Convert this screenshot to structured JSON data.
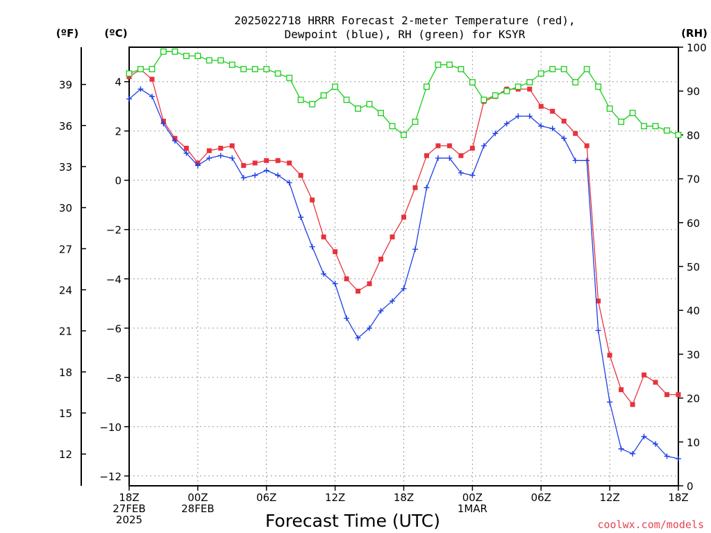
{
  "title_line1": "2025022718 HRRR Forecast 2-meter Temperature (red),",
  "title_line2": "Dewpoint (blue), RH (green) for KSYR",
  "units": {
    "fahrenheit": "(ºF)",
    "celsius": "(ºC)",
    "rh": "(RH)"
  },
  "xlabel": "Forecast Time (UTC)",
  "credit": "coolwx.com/models",
  "colors": {
    "temperature": "#e8323c",
    "dewpoint": "#1e3ee6",
    "rh": "#18cc18"
  },
  "chart_data": {
    "type": "line",
    "title": "2025022718 HRRR Forecast 2-meter Temperature (red), Dewpoint (blue), RH (green) for KSYR",
    "xlabel": "Forecast Time (UTC)",
    "x_hours": [
      0,
      1,
      2,
      3,
      4,
      5,
      6,
      7,
      8,
      9,
      10,
      11,
      12,
      13,
      14,
      15,
      16,
      17,
      18,
      19,
      20,
      21,
      22,
      23,
      24,
      25,
      26,
      27,
      28,
      29,
      30,
      31,
      32,
      33,
      34,
      35,
      36,
      37,
      38,
      39,
      40,
      41,
      42,
      43,
      44,
      45,
      46,
      47,
      48
    ],
    "x_ticks": [
      {
        "hour": 0,
        "lines": [
          "18Z",
          "27FEB",
          "2025"
        ]
      },
      {
        "hour": 6,
        "lines": [
          "00Z",
          "28FEB"
        ]
      },
      {
        "hour": 12,
        "lines": [
          "06Z"
        ]
      },
      {
        "hour": 18,
        "lines": [
          "12Z"
        ]
      },
      {
        "hour": 24,
        "lines": [
          "18Z"
        ]
      },
      {
        "hour": 30,
        "lines": [
          "00Z",
          "1MAR"
        ]
      },
      {
        "hour": 36,
        "lines": [
          "06Z"
        ]
      },
      {
        "hour": 42,
        "lines": [
          "12Z"
        ]
      },
      {
        "hour": 48,
        "lines": [
          "18Z"
        ]
      }
    ],
    "xlim": [
      0,
      48
    ],
    "y_celsius": {
      "lim": [
        -12.4,
        5.4
      ],
      "ticks": [
        4,
        2,
        0,
        -2,
        -4,
        -6,
        -8,
        -10,
        -12
      ]
    },
    "y_fahrenheit": {
      "ticks": [
        39,
        36,
        33,
        30,
        27,
        24,
        21,
        18,
        15,
        12
      ]
    },
    "y_rh": {
      "lim": [
        0,
        100
      ],
      "ticks": [
        100,
        90,
        80,
        70,
        60,
        50,
        40,
        30,
        20,
        10,
        0
      ]
    },
    "grid": true,
    "series": [
      {
        "name": "Temperature",
        "axis": "celsius",
        "marker": "filled-square",
        "values": [
          4.2,
          4.5,
          4.1,
          2.4,
          1.7,
          1.3,
          0.7,
          1.2,
          1.3,
          1.4,
          0.6,
          0.7,
          0.8,
          0.8,
          0.7,
          0.2,
          -0.8,
          -2.3,
          -2.9,
          -4.0,
          -4.5,
          -4.2,
          -3.2,
          -2.3,
          -1.5,
          -0.3,
          1.0,
          1.4,
          1.4,
          1.0,
          1.3,
          3.2,
          3.4,
          3.7,
          3.7,
          3.7,
          3.0,
          2.8,
          2.4,
          1.9,
          1.4,
          -4.9,
          -7.1,
          -8.5,
          -9.1,
          -7.9,
          -8.2,
          -8.7,
          -8.7
        ]
      },
      {
        "name": "Dewpoint",
        "axis": "celsius",
        "marker": "plus",
        "values": [
          3.3,
          3.7,
          3.4,
          2.3,
          1.6,
          1.1,
          0.6,
          0.9,
          1.0,
          0.9,
          0.1,
          0.2,
          0.4,
          0.2,
          -0.1,
          -1.5,
          -2.7,
          -3.8,
          -4.2,
          -5.6,
          -6.4,
          -6.0,
          -5.3,
          -4.9,
          -4.4,
          -2.8,
          -0.3,
          0.9,
          0.9,
          0.3,
          0.2,
          1.4,
          1.9,
          2.3,
          2.6,
          2.6,
          2.2,
          2.1,
          1.7,
          0.8,
          0.8,
          -6.1,
          -9.0,
          -10.9,
          -11.1,
          -10.4,
          -10.7,
          -11.2,
          -11.3
        ]
      },
      {
        "name": "RH",
        "axis": "rh",
        "marker": "open-square",
        "values": [
          94,
          95,
          95,
          99,
          99,
          98,
          98,
          97,
          97,
          96,
          95,
          95,
          95,
          94,
          93,
          88,
          87,
          89,
          91,
          88,
          86,
          87,
          85,
          82,
          80,
          83,
          91,
          96,
          96,
          95,
          92,
          88,
          89,
          90,
          91,
          92,
          94,
          95,
          95,
          92,
          95,
          91,
          86,
          83,
          85,
          82,
          82,
          81,
          80
        ]
      }
    ]
  }
}
